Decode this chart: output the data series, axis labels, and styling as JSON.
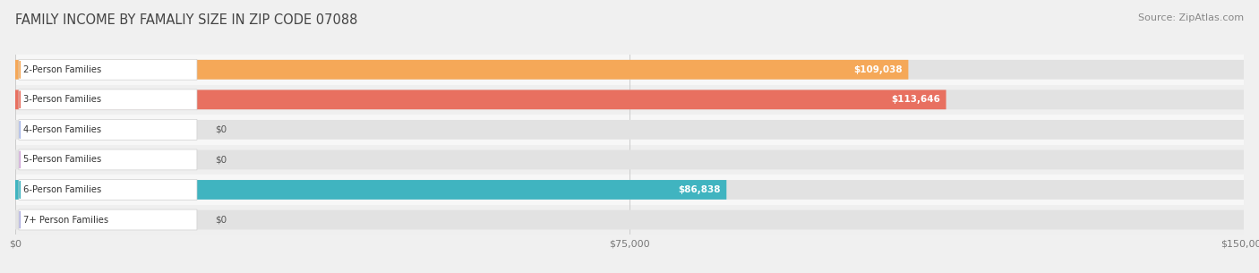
{
  "title": "FAMILY INCOME BY FAMALIY SIZE IN ZIP CODE 07088",
  "source": "Source: ZipAtlas.com",
  "categories": [
    "2-Person Families",
    "3-Person Families",
    "4-Person Families",
    "5-Person Families",
    "6-Person Families",
    "7+ Person Families"
  ],
  "values": [
    109038,
    113646,
    0,
    0,
    86838,
    0
  ],
  "bar_colors": [
    "#f5a858",
    "#e87060",
    "#a8b8e8",
    "#d0a8d8",
    "#40b4c0",
    "#b0b0e0"
  ],
  "label_colors": [
    "#ffffff",
    "#ffffff",
    "#555555",
    "#555555",
    "#333333",
    "#555555"
  ],
  "value_inside": [
    true,
    true,
    false,
    false,
    false,
    false
  ],
  "xlim": [
    0,
    150000
  ],
  "xticks": [
    0,
    75000,
    150000
  ],
  "xtick_labels": [
    "$0",
    "$75,000",
    "$150,000"
  ],
  "value_labels": [
    "$109,038",
    "$113,646",
    "$0",
    "$0",
    "$86,838",
    "$0"
  ],
  "title_fontsize": 10.5,
  "source_fontsize": 8,
  "bar_height": 0.65,
  "row_bg_even": "#f7f7f7",
  "row_bg_odd": "#efefef",
  "track_color": "#e2e2e2",
  "background_color": "#f0f0f0"
}
